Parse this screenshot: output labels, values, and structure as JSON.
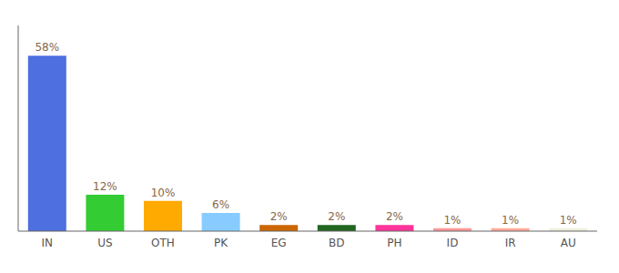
{
  "chart_data": {
    "type": "bar",
    "categories": [
      "IN",
      "US",
      "OTH",
      "PK",
      "EG",
      "BD",
      "PH",
      "ID",
      "IR",
      "AU"
    ],
    "values": [
      58,
      12,
      10,
      6,
      2,
      2,
      2,
      1,
      1,
      1
    ],
    "value_labels": [
      "58%",
      "12%",
      "10%",
      "6%",
      "2%",
      "2%",
      "2%",
      "1%",
      "1%",
      "1%"
    ],
    "colors": [
      "#4d6fe0",
      "#33cc33",
      "#ffaa00",
      "#88ccff",
      "#cc6600",
      "#226622",
      "#ff3399",
      "#ff9999",
      "#ffaa99",
      "#f0eedd"
    ],
    "ylim": [
      0,
      68
    ],
    "tick_labels": "x",
    "grid": false,
    "data_labels": true
  }
}
